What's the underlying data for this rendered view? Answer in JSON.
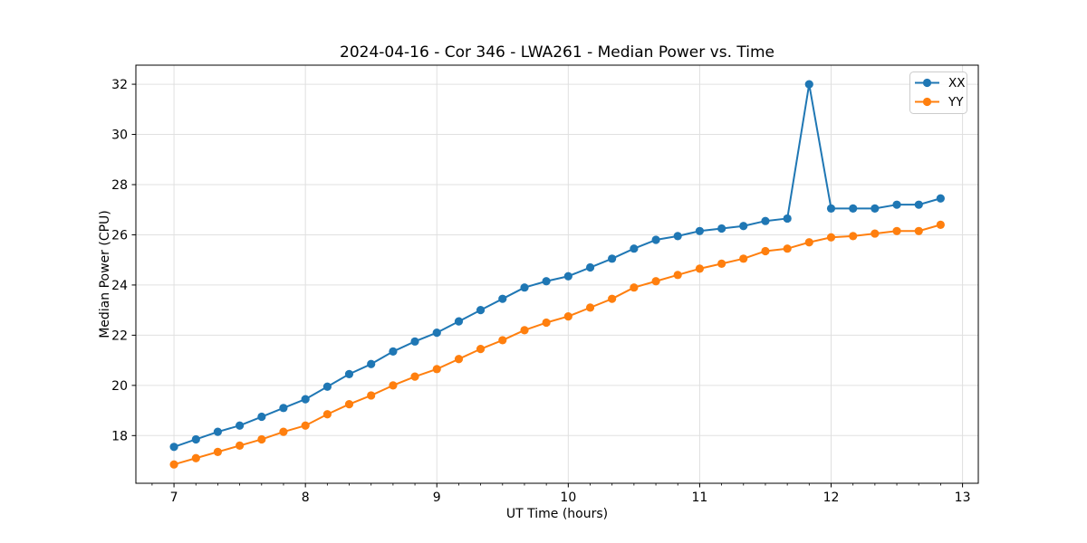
{
  "figure": {
    "background": "#ffffff"
  },
  "colors": {
    "series_xx": "#1f77b4",
    "series_yy": "#ff7f0e",
    "grid": "#e0e0e0",
    "spine": "#000000",
    "legend_border": "#cccccc",
    "legend_background": "#ffffff"
  },
  "chart_data": {
    "type": "line",
    "title": "2024-04-16 - Cor 346 - LWA261 - Median Power vs. Time",
    "xlabel": "UT Time (hours)",
    "ylabel": "Median Power (CPU)",
    "xlim": [
      6.71,
      13.12
    ],
    "ylim": [
      16.1,
      32.76
    ],
    "x_major_ticks": [
      7,
      8,
      9,
      10,
      11,
      12,
      13
    ],
    "x_minor_step": 0.1666667,
    "y_major_ticks": [
      18,
      20,
      22,
      24,
      26,
      28,
      30,
      32
    ],
    "grid": true,
    "legend_position": "upper right",
    "x": [
      7.0,
      7.167,
      7.333,
      7.5,
      7.667,
      7.833,
      8.0,
      8.167,
      8.333,
      8.5,
      8.667,
      8.833,
      9.0,
      9.167,
      9.333,
      9.5,
      9.667,
      9.833,
      10.0,
      10.167,
      10.333,
      10.5,
      10.667,
      10.833,
      11.0,
      11.167,
      11.333,
      11.5,
      11.667,
      11.833,
      12.0,
      12.167,
      12.333,
      12.5,
      12.667,
      12.833
    ],
    "series": [
      {
        "name": "XX",
        "color": "#1f77b4",
        "values": [
          17.55,
          17.85,
          18.15,
          18.4,
          18.75,
          19.1,
          19.45,
          19.95,
          20.45,
          20.85,
          21.35,
          21.75,
          22.1,
          22.55,
          23.0,
          23.45,
          23.9,
          24.15,
          24.35,
          24.7,
          25.05,
          25.45,
          25.8,
          25.95,
          26.15,
          26.25,
          26.35,
          26.55,
          26.65,
          32.0,
          27.05,
          27.05,
          27.05,
          27.2,
          27.2,
          27.45
        ]
      },
      {
        "name": "YY",
        "color": "#ff7f0e",
        "values": [
          16.85,
          17.1,
          17.35,
          17.6,
          17.85,
          18.15,
          18.4,
          18.85,
          19.25,
          19.6,
          20.0,
          20.35,
          20.65,
          21.05,
          21.45,
          21.8,
          22.2,
          22.5,
          22.75,
          23.1,
          23.45,
          23.9,
          24.15,
          24.4,
          24.65,
          24.85,
          25.05,
          25.35,
          25.45,
          25.7,
          25.9,
          25.95,
          26.05,
          26.15,
          26.15,
          26.4
        ]
      }
    ]
  }
}
